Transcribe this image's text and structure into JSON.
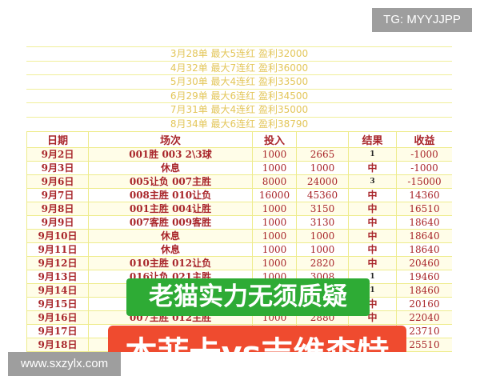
{
  "summary": [
    "3月28单  最大5连红  盈利32000",
    "4月32单  最大7连红  盈利36000",
    "5月30单  最大4连红  盈利33500",
    "6月29单  最大6连红  盈利34500",
    "7月31单  最大4连红  盈利35000",
    "8月34单  最大6连红  盈利38790"
  ],
  "headers": [
    "日期",
    "场次",
    "投入",
    "",
    "结果",
    "收益"
  ],
  "rows": [
    [
      "9月2日",
      "001胜  003  2\\3球",
      "1000",
      "2665",
      "1",
      "-1000"
    ],
    [
      "9月3日",
      "休息",
      "1000",
      "1000",
      "中",
      "-1000"
    ],
    [
      "9月6日",
      "005让负  007主胜",
      "8000",
      "24000",
      "3",
      "-15000"
    ],
    [
      "9月7日",
      "008主胜  010让负",
      "16000",
      "45360",
      "中",
      "14360"
    ],
    [
      "9月8日",
      "001主胜  004让胜",
      "1000",
      "3150",
      "中",
      "16510"
    ],
    [
      "9月9日",
      "007客胜  009客胜",
      "1000",
      "3130",
      "中",
      "18640"
    ],
    [
      "9月10日",
      "休息",
      "1000",
      "1000",
      "中",
      "18640"
    ],
    [
      "9月11日",
      "休息",
      "1000",
      "1000",
      "中",
      "18640"
    ],
    [
      "9月12日",
      "010主胜  012让负",
      "1000",
      "2820",
      "中",
      "20460"
    ],
    [
      "9月13日",
      "016让负  021主胜",
      "1000",
      "3008",
      "1",
      "19460"
    ],
    [
      "9月14日",
      "",
      "",
      "",
      "1",
      "18460"
    ],
    [
      "9月15日",
      "",
      "",
      "",
      "中",
      "20160"
    ],
    [
      "9月16日",
      "007主胜  012主胜",
      "1000",
      "2880",
      "中",
      "22040"
    ],
    [
      "9月17日",
      "",
      "",
      "",
      "",
      "23710"
    ],
    [
      "9月18日",
      "",
      "",
      "",
      "",
      "25510"
    ]
  ],
  "overlay_green": "老猫实力无须质疑",
  "overlay_red": "本菲卡vs吉维森特",
  "badge_tg": "TG: MYYJJPP",
  "watermark": "www.sxzylx.com",
  "colors": {
    "header_red": "#a8252a",
    "summary_gold": "#e3c65a",
    "green": "#2eab35",
    "red": "#ef4b2f",
    "badge": "#9e9e9e"
  }
}
